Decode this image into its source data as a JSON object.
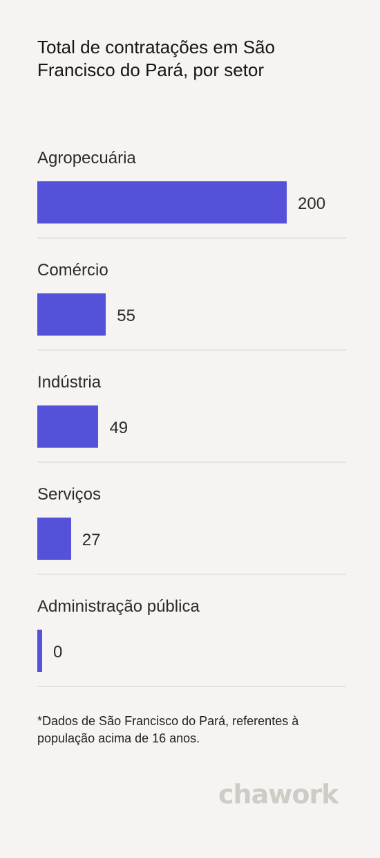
{
  "chart_data": {
    "type": "bar",
    "orientation": "horizontal",
    "title": "Total de contratações em São Francisco do Pará, por setor",
    "categories": [
      "Agropecuária",
      "Comércio",
      "Indústria",
      "Serviços",
      "Administração pública"
    ],
    "values": [
      200,
      55,
      49,
      27,
      0
    ],
    "xlim": [
      0,
      200
    ],
    "grid": false,
    "legend": "none",
    "bar_color": "#5551d8"
  },
  "footnote": "*Dados de São Francisco do Pará, referentes à população acima de 16 anos.",
  "brand": {
    "logo_text": "chawork"
  }
}
